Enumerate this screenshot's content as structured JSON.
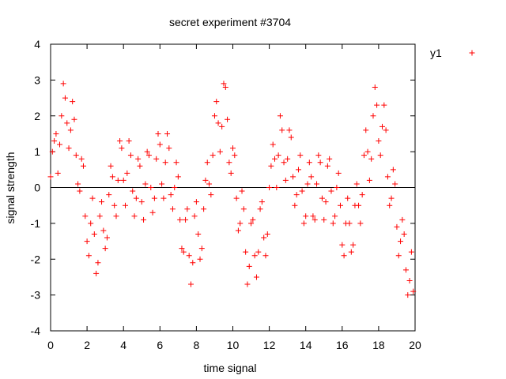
{
  "chart_data": {
    "type": "scatter",
    "title": "secret experiment #3704",
    "xlabel": "time signal",
    "ylabel": "signal strength",
    "xlim": [
      0,
      20
    ],
    "ylim": [
      -4,
      4
    ],
    "xticks": [
      "0",
      "2",
      "4",
      "6",
      "8",
      "10",
      "12",
      "14",
      "16",
      "18",
      "20"
    ],
    "yticks": [
      "4",
      "3",
      "2",
      "1",
      "0",
      "-1",
      "-2",
      "-3",
      "-4"
    ],
    "grid": false,
    "legend_position": "top-right, outside plot",
    "zero_line": true,
    "marker": "+",
    "series": [
      {
        "name": "y1",
        "color": "#ff0000",
        "points": [
          [
            0.0,
            0.3
          ],
          [
            0.1,
            1.0
          ],
          [
            0.2,
            1.3
          ],
          [
            0.3,
            1.5
          ],
          [
            0.4,
            0.4
          ],
          [
            0.5,
            1.2
          ],
          [
            0.6,
            2.0
          ],
          [
            0.7,
            2.9
          ],
          [
            0.8,
            2.5
          ],
          [
            0.9,
            1.8
          ],
          [
            1.0,
            1.1
          ],
          [
            1.1,
            1.6
          ],
          [
            1.2,
            2.4
          ],
          [
            1.3,
            1.9
          ],
          [
            1.4,
            0.9
          ],
          [
            1.5,
            0.1
          ],
          [
            1.6,
            -0.1
          ],
          [
            1.7,
            0.8
          ],
          [
            1.8,
            0.6
          ],
          [
            1.9,
            -0.8
          ],
          [
            2.0,
            -1.5
          ],
          [
            2.1,
            -1.9
          ],
          [
            2.2,
            -1.0
          ],
          [
            2.3,
            -0.3
          ],
          [
            2.4,
            -1.3
          ],
          [
            2.5,
            -2.4
          ],
          [
            2.6,
            -2.1
          ],
          [
            2.7,
            -0.8
          ],
          [
            2.8,
            -0.4
          ],
          [
            2.9,
            -1.2
          ],
          [
            3.0,
            -1.7
          ],
          [
            3.1,
            -1.4
          ],
          [
            3.2,
            -0.2
          ],
          [
            3.3,
            0.6
          ],
          [
            3.4,
            0.3
          ],
          [
            3.5,
            -0.5
          ],
          [
            3.6,
            -0.8
          ],
          [
            3.7,
            0.2
          ],
          [
            3.8,
            1.3
          ],
          [
            3.9,
            1.1
          ],
          [
            4.0,
            0.2
          ],
          [
            4.1,
            -0.5
          ],
          [
            4.2,
            0.4
          ],
          [
            4.3,
            1.3
          ],
          [
            4.4,
            0.9
          ],
          [
            4.5,
            -0.1
          ],
          [
            4.6,
            -0.8
          ],
          [
            4.7,
            -0.3
          ],
          [
            4.8,
            0.8
          ],
          [
            4.9,
            0.6
          ],
          [
            5.0,
            -0.4
          ],
          [
            5.1,
            -0.9
          ],
          [
            5.2,
            0.1
          ],
          [
            5.3,
            1.0
          ],
          [
            5.4,
            0.9
          ],
          [
            5.5,
            0.0
          ],
          [
            5.6,
            -0.7
          ],
          [
            5.7,
            -0.3
          ],
          [
            5.8,
            0.8
          ],
          [
            5.9,
            1.5
          ],
          [
            6.0,
            1.2
          ],
          [
            6.1,
            0.1
          ],
          [
            6.2,
            -0.3
          ],
          [
            6.3,
            0.7
          ],
          [
            6.4,
            1.5
          ],
          [
            6.5,
            1.1
          ],
          [
            6.6,
            -0.2
          ],
          [
            6.7,
            -0.6
          ],
          [
            6.8,
            0.0
          ],
          [
            6.9,
            0.7
          ],
          [
            7.0,
            0.3
          ],
          [
            7.1,
            -0.9
          ],
          [
            7.2,
            -1.7
          ],
          [
            7.3,
            -1.8
          ],
          [
            7.4,
            -0.9
          ],
          [
            7.5,
            -0.6
          ],
          [
            7.6,
            -1.9
          ],
          [
            7.7,
            -2.7
          ],
          [
            7.8,
            -2.1
          ],
          [
            7.9,
            -0.8
          ],
          [
            8.0,
            -0.4
          ],
          [
            8.1,
            -1.3
          ],
          [
            8.2,
            -2.0
          ],
          [
            8.3,
            -1.7
          ],
          [
            8.4,
            -0.6
          ],
          [
            8.5,
            0.2
          ],
          [
            8.6,
            0.7
          ],
          [
            8.7,
            0.1
          ],
          [
            8.8,
            -0.2
          ],
          [
            8.9,
            0.9
          ],
          [
            9.0,
            2.0
          ],
          [
            9.1,
            2.4
          ],
          [
            9.2,
            1.8
          ],
          [
            9.3,
            1.0
          ],
          [
            9.4,
            1.7
          ],
          [
            9.5,
            2.9
          ],
          [
            9.6,
            2.8
          ],
          [
            9.7,
            1.9
          ],
          [
            9.8,
            0.7
          ],
          [
            9.9,
            0.4
          ],
          [
            10.0,
            1.1
          ],
          [
            10.1,
            0.9
          ],
          [
            10.2,
            -0.3
          ],
          [
            10.3,
            -1.2
          ],
          [
            10.4,
            -1.0
          ],
          [
            10.5,
            -0.1
          ],
          [
            10.6,
            -0.6
          ],
          [
            10.7,
            -1.8
          ],
          [
            10.8,
            -2.7
          ],
          [
            10.9,
            -2.2
          ],
          [
            11.0,
            -1.0
          ],
          [
            11.1,
            -0.9
          ],
          [
            11.2,
            -1.9
          ],
          [
            11.3,
            -2.5
          ],
          [
            11.4,
            -1.8
          ],
          [
            11.5,
            -0.6
          ],
          [
            11.6,
            -0.4
          ],
          [
            11.7,
            -1.4
          ],
          [
            11.8,
            -1.9
          ],
          [
            11.9,
            -1.3
          ],
          [
            12.0,
            0.0
          ],
          [
            12.1,
            0.6
          ],
          [
            12.2,
            1.2
          ],
          [
            12.3,
            0.8
          ],
          [
            12.4,
            0.0
          ],
          [
            12.5,
            0.9
          ],
          [
            12.6,
            2.0
          ],
          [
            12.7,
            1.6
          ],
          [
            12.8,
            0.7
          ],
          [
            12.9,
            0.2
          ],
          [
            13.0,
            0.8
          ],
          [
            13.1,
            1.6
          ],
          [
            13.2,
            1.4
          ],
          [
            13.3,
            0.3
          ],
          [
            13.4,
            -0.5
          ],
          [
            13.5,
            -0.2
          ],
          [
            13.6,
            0.5
          ],
          [
            13.7,
            0.9
          ],
          [
            13.8,
            -0.1
          ],
          [
            13.9,
            -1.0
          ],
          [
            14.0,
            -0.8
          ],
          [
            14.1,
            0.1
          ],
          [
            14.2,
            0.7
          ],
          [
            14.3,
            0.3
          ],
          [
            14.4,
            -0.8
          ],
          [
            14.5,
            -0.9
          ],
          [
            14.6,
            0.1
          ],
          [
            14.7,
            0.9
          ],
          [
            14.8,
            0.7
          ],
          [
            14.9,
            -0.3
          ],
          [
            15.0,
            -0.9
          ],
          [
            15.1,
            -0.4
          ],
          [
            15.2,
            0.6
          ],
          [
            15.3,
            0.8
          ],
          [
            15.4,
            -0.1
          ],
          [
            15.5,
            -1.0
          ],
          [
            15.6,
            -0.8
          ],
          [
            15.7,
            0.0
          ],
          [
            15.8,
            0.4
          ],
          [
            15.9,
            -0.5
          ],
          [
            16.0,
            -1.6
          ],
          [
            16.1,
            -1.9
          ],
          [
            16.2,
            -1.0
          ],
          [
            16.3,
            -0.3
          ],
          [
            16.4,
            -1.0
          ],
          [
            16.5,
            -1.8
          ],
          [
            16.6,
            -1.6
          ],
          [
            16.7,
            -0.5
          ],
          [
            16.8,
            0.1
          ],
          [
            16.9,
            -0.5
          ],
          [
            17.0,
            -1.0
          ],
          [
            17.1,
            -0.2
          ],
          [
            17.2,
            0.9
          ],
          [
            17.3,
            1.6
          ],
          [
            17.4,
            1.0
          ],
          [
            17.5,
            0.2
          ],
          [
            17.6,
            0.8
          ],
          [
            17.7,
            2.0
          ],
          [
            17.8,
            2.8
          ],
          [
            17.9,
            2.3
          ],
          [
            18.0,
            1.3
          ],
          [
            18.1,
            0.9
          ],
          [
            18.2,
            1.7
          ],
          [
            18.3,
            2.3
          ],
          [
            18.4,
            1.6
          ],
          [
            18.5,
            0.3
          ],
          [
            18.6,
            -0.5
          ],
          [
            18.7,
            -0.3
          ],
          [
            18.8,
            0.5
          ],
          [
            18.9,
            0.1
          ],
          [
            19.0,
            -1.1
          ],
          [
            19.1,
            -1.9
          ],
          [
            19.2,
            -1.5
          ],
          [
            19.3,
            -0.9
          ],
          [
            19.4,
            -1.3
          ],
          [
            19.5,
            -2.3
          ],
          [
            19.6,
            -3.0
          ],
          [
            19.7,
            -2.6
          ],
          [
            19.8,
            -1.8
          ],
          [
            19.9,
            -2.9
          ]
        ]
      }
    ]
  }
}
